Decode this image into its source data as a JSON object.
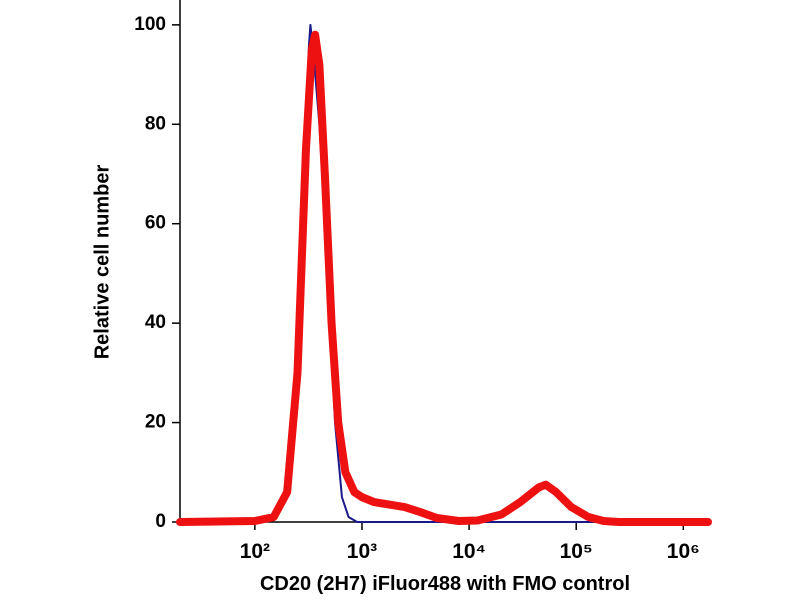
{
  "chart_data": {
    "type": "line",
    "x_label": "CD20 (2H7) iFluor488 with FMO control",
    "y_label": "Relative cell number",
    "xscale": "log",
    "xlim": [
      20,
      1700000
    ],
    "ylim": [
      0,
      105
    ],
    "xticks": [
      {
        "value": 100,
        "label": "10²"
      },
      {
        "value": 1000,
        "label": "10³"
      },
      {
        "value": 10000,
        "label": "10⁴"
      },
      {
        "value": 100000,
        "label": "10⁵"
      },
      {
        "value": 1000000,
        "label": "10⁶"
      }
    ],
    "yticks": [
      0,
      20,
      40,
      60,
      80,
      100
    ],
    "series": [
      {
        "color": "#1a1a8c",
        "width": 2,
        "x": [
          20,
          100,
          150,
          200,
          250,
          290,
          320,
          330,
          350,
          400,
          480,
          560,
          650,
          750,
          900,
          1700000
        ],
        "values": [
          0,
          0.2,
          1,
          5,
          30,
          70,
          96,
          100,
          95,
          80,
          50,
          20,
          5,
          1,
          0,
          0
        ]
      },
      {
        "color": "#ee1111",
        "width": 8,
        "x": [
          20,
          100,
          150,
          200,
          250,
          300,
          340,
          365,
          400,
          450,
          520,
          600,
          700,
          850,
          1000,
          1300,
          1800,
          2500,
          3500,
          5000,
          8000,
          12000,
          20000,
          30000,
          45000,
          52000,
          65000,
          90000,
          130000,
          180000,
          250000,
          1700000
        ],
        "values": [
          0,
          0.2,
          1,
          6,
          30,
          75,
          95,
          98,
          92,
          70,
          40,
          20,
          10,
          6,
          5,
          4,
          3.5,
          3,
          2,
          0.8,
          0.2,
          0.3,
          1.5,
          4,
          7,
          7.5,
          6,
          3,
          1,
          0.2,
          0,
          0
        ]
      }
    ]
  }
}
